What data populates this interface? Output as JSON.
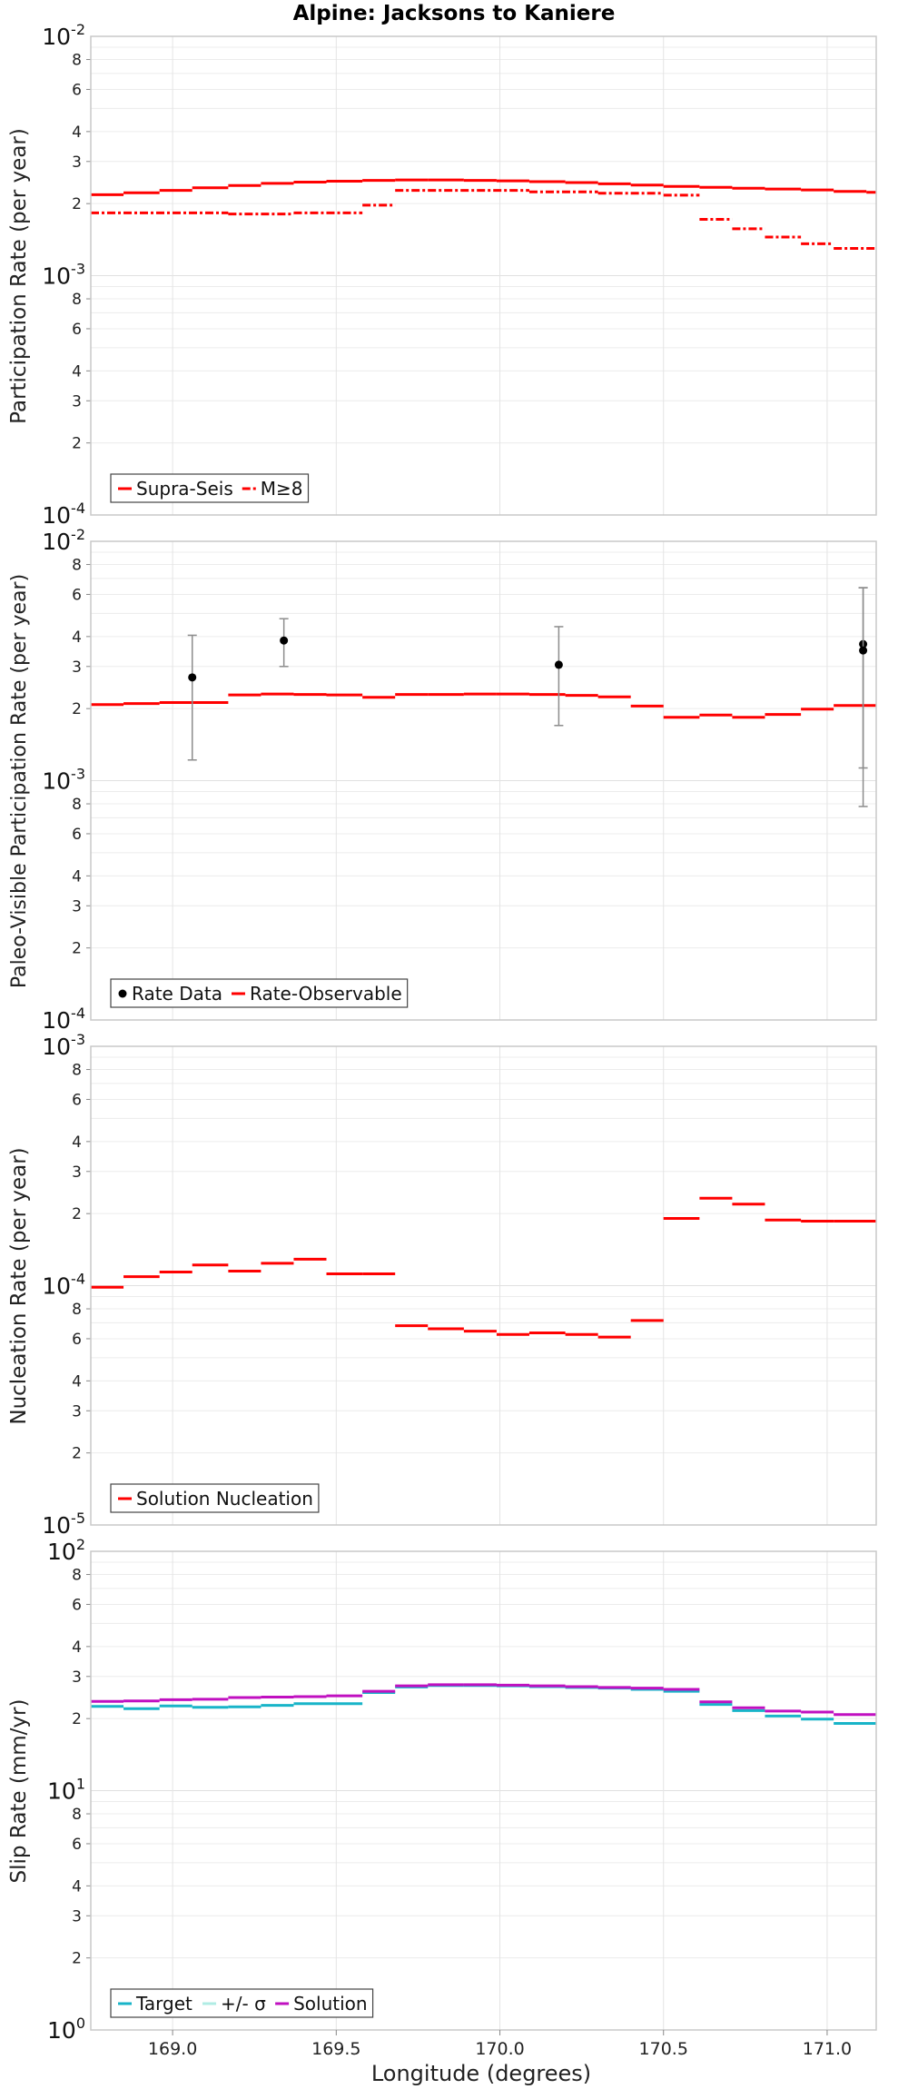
{
  "figure": {
    "title": "Alpine: Jacksons to Kaniere",
    "xlabel": "Longitude (degrees)",
    "xticks": [
      "169.0",
      "169.5",
      "170.0",
      "170.5",
      "171.0"
    ],
    "xtick_values": [
      169.0,
      169.5,
      170.0,
      170.5,
      171.0
    ],
    "xlim": [
      168.75,
      171.15
    ]
  },
  "chart_data": [
    {
      "type": "line",
      "id": "participation",
      "ylabel": "Participation Rate (per year)",
      "yscale": "log",
      "ylim": [
        0.0001,
        0.01
      ],
      "major_ticks": [
        {
          "base": "10",
          "exp": "-4"
        },
        {
          "base": "10",
          "exp": "-3"
        },
        {
          "base": "10",
          "exp": "-2"
        }
      ],
      "minor_labels": [
        "2",
        "3",
        "4",
        "6",
        "8"
      ],
      "legend": [
        "Supra-Seis",
        "M≥8"
      ],
      "series": [
        {
          "name": "Supra-Seis",
          "color": "#ff0000",
          "style": "solid",
          "segments": [
            [
              168.75,
              168.85,
              0.00218
            ],
            [
              168.85,
              168.96,
              0.00222
            ],
            [
              168.96,
              169.06,
              0.00227
            ],
            [
              169.06,
              169.17,
              0.00233
            ],
            [
              169.17,
              169.27,
              0.00238
            ],
            [
              169.27,
              169.37,
              0.00243
            ],
            [
              169.37,
              169.47,
              0.00246
            ],
            [
              169.47,
              169.58,
              0.00248
            ],
            [
              169.58,
              169.68,
              0.0025
            ],
            [
              169.68,
              169.78,
              0.00251
            ],
            [
              169.78,
              169.89,
              0.00251
            ],
            [
              169.89,
              169.99,
              0.0025
            ],
            [
              169.99,
              170.09,
              0.00249
            ],
            [
              170.09,
              170.2,
              0.00247
            ],
            [
              170.2,
              170.3,
              0.00245
            ],
            [
              170.3,
              170.4,
              0.00242
            ],
            [
              170.4,
              170.5,
              0.00239
            ],
            [
              170.5,
              170.61,
              0.00236
            ],
            [
              170.61,
              170.71,
              0.00234
            ],
            [
              170.71,
              170.81,
              0.00232
            ],
            [
              170.81,
              170.92,
              0.0023
            ],
            [
              170.92,
              171.02,
              0.00228
            ],
            [
              171.02,
              171.12,
              0.00225
            ],
            [
              171.12,
              171.15,
              0.00223
            ]
          ]
        },
        {
          "name": "M≥8",
          "color": "#ff0000",
          "style": "dashdot",
          "segments": [
            [
              168.75,
              169.17,
              0.00183
            ],
            [
              169.17,
              169.37,
              0.00181
            ],
            [
              169.37,
              169.47,
              0.00183
            ],
            [
              169.47,
              169.58,
              0.00183
            ],
            [
              169.58,
              169.68,
              0.00197
            ],
            [
              169.68,
              170.09,
              0.00227
            ],
            [
              170.09,
              170.3,
              0.00224
            ],
            [
              170.3,
              170.5,
              0.00221
            ],
            [
              170.5,
              170.61,
              0.00217
            ],
            [
              170.61,
              170.71,
              0.00172
            ],
            [
              170.71,
              170.81,
              0.00157
            ],
            [
              170.81,
              170.92,
              0.00145
            ],
            [
              170.92,
              171.02,
              0.00136
            ],
            [
              171.02,
              171.15,
              0.0013
            ]
          ]
        }
      ]
    },
    {
      "type": "line",
      "id": "paleo",
      "ylabel": "Paleo-Visible Participation Rate (per year)",
      "yscale": "log",
      "ylim": [
        0.0001,
        0.01
      ],
      "major_ticks": [
        {
          "base": "10",
          "exp": "-4"
        },
        {
          "base": "10",
          "exp": "-3"
        },
        {
          "base": "10",
          "exp": "-2"
        }
      ],
      "minor_labels": [
        "2",
        "3",
        "4",
        "6",
        "8"
      ],
      "legend": [
        "Rate Data",
        "Rate-Observable"
      ],
      "series": [
        {
          "name": "Rate-Observable",
          "color": "#ff0000",
          "style": "solid",
          "segments": [
            [
              168.75,
              168.85,
              0.00208
            ],
            [
              168.85,
              168.96,
              0.0021
            ],
            [
              168.96,
              169.06,
              0.00212
            ],
            [
              169.06,
              169.17,
              0.00212
            ],
            [
              169.17,
              169.27,
              0.00228
            ],
            [
              169.27,
              169.37,
              0.0023
            ],
            [
              169.37,
              169.47,
              0.00229
            ],
            [
              169.47,
              169.58,
              0.00228
            ],
            [
              169.58,
              169.68,
              0.00223
            ],
            [
              169.68,
              169.78,
              0.00229
            ],
            [
              169.78,
              169.89,
              0.00229
            ],
            [
              169.89,
              169.99,
              0.0023
            ],
            [
              169.99,
              170.09,
              0.0023
            ],
            [
              170.09,
              170.2,
              0.00229
            ],
            [
              170.2,
              170.3,
              0.00227
            ],
            [
              170.3,
              170.4,
              0.00224
            ],
            [
              170.4,
              170.5,
              0.00205
            ],
            [
              170.5,
              170.61,
              0.00184
            ],
            [
              170.61,
              170.71,
              0.00188
            ],
            [
              170.71,
              170.81,
              0.00184
            ],
            [
              170.81,
              170.92,
              0.00189
            ],
            [
              170.92,
              171.02,
              0.00199
            ],
            [
              171.02,
              171.15,
              0.00206
            ]
          ]
        }
      ],
      "points": [
        {
          "name": "Rate Data",
          "x": 169.06,
          "y": 0.0027,
          "lo": 0.00122,
          "hi": 0.00405
        },
        {
          "name": "Rate Data",
          "x": 169.34,
          "y": 0.00385,
          "lo": 0.003,
          "hi": 0.00475
        },
        {
          "name": "Rate Data",
          "x": 170.18,
          "y": 0.00305,
          "lo": 0.0017,
          "hi": 0.0044
        },
        {
          "name": "Rate Data",
          "x": 171.11,
          "y": 0.00372,
          "lo": 0.00113,
          "hi": 0.0064
        },
        {
          "name": "Rate Data",
          "x": 171.11,
          "y": 0.0035,
          "lo": 0.00078,
          "hi": 0.0064
        }
      ]
    },
    {
      "type": "line",
      "id": "nucleation",
      "ylabel": "Nucleation Rate (per year)",
      "yscale": "log",
      "ylim": [
        1e-05,
        0.001
      ],
      "major_ticks": [
        {
          "base": "10",
          "exp": "-5"
        },
        {
          "base": "10",
          "exp": "-4"
        },
        {
          "base": "10",
          "exp": "-3"
        }
      ],
      "minor_labels": [
        "2",
        "3",
        "4",
        "6",
        "8"
      ],
      "legend": [
        "Solution Nucleation"
      ],
      "series": [
        {
          "name": "Solution Nucleation",
          "color": "#ff0000",
          "style": "solid",
          "segments": [
            [
              168.75,
              168.85,
              9.85e-05
            ],
            [
              168.85,
              168.96,
              0.000109
            ],
            [
              168.96,
              169.06,
              0.000114
            ],
            [
              169.06,
              169.17,
              0.000122
            ],
            [
              169.17,
              169.27,
              0.000115
            ],
            [
              169.27,
              169.37,
              0.000124
            ],
            [
              169.37,
              169.47,
              0.000129
            ],
            [
              169.47,
              169.58,
              0.000112
            ],
            [
              169.58,
              169.68,
              0.000112
            ],
            [
              169.68,
              169.78,
              6.8e-05
            ],
            [
              169.78,
              169.89,
              6.6e-05
            ],
            [
              169.89,
              169.99,
              6.45e-05
            ],
            [
              169.99,
              170.09,
              6.25e-05
            ],
            [
              170.09,
              170.2,
              6.35e-05
            ],
            [
              170.2,
              170.3,
              6.25e-05
            ],
            [
              170.3,
              170.4,
              6.1e-05
            ],
            [
              170.4,
              170.5,
              7.15e-05
            ],
            [
              170.5,
              170.61,
              0.000191
            ],
            [
              170.61,
              170.71,
              0.000232
            ],
            [
              170.71,
              170.81,
              0.000219
            ],
            [
              170.81,
              170.92,
              0.000188
            ],
            [
              170.92,
              171.02,
              0.000186
            ],
            [
              171.02,
              171.15,
              0.000186
            ]
          ]
        }
      ]
    },
    {
      "type": "line",
      "id": "slip",
      "ylabel": "Slip Rate (mm/yr)",
      "yscale": "log",
      "ylim": [
        1,
        100
      ],
      "major_ticks": [
        {
          "base": "10",
          "exp": "0"
        },
        {
          "base": "10",
          "exp": "1"
        },
        {
          "base": "10",
          "exp": "2"
        }
      ],
      "minor_labels": [
        "2",
        "3",
        "4",
        "6",
        "8"
      ],
      "legend": [
        "Target",
        "+/- σ",
        "Solution"
      ],
      "series": [
        {
          "name": "Target",
          "color": "#18b4c8",
          "style": "solid",
          "segments": [
            [
              168.75,
              168.85,
              22.5
            ],
            [
              168.85,
              168.96,
              22.0
            ],
            [
              168.96,
              169.06,
              22.6
            ],
            [
              169.06,
              169.17,
              22.3
            ],
            [
              169.17,
              169.27,
              22.4
            ],
            [
              169.27,
              169.37,
              22.7
            ],
            [
              169.37,
              169.47,
              23.1
            ],
            [
              169.47,
              169.58,
              23.1
            ],
            [
              169.58,
              169.68,
              25.7
            ],
            [
              169.68,
              169.78,
              27.1
            ],
            [
              169.78,
              169.89,
              27.5
            ],
            [
              169.89,
              169.99,
              27.5
            ],
            [
              169.99,
              170.09,
              27.4
            ],
            [
              170.09,
              170.2,
              27.2
            ],
            [
              170.2,
              170.3,
              27.0
            ],
            [
              170.3,
              170.4,
              26.8
            ],
            [
              170.4,
              170.5,
              26.5
            ],
            [
              170.5,
              170.61,
              26.0
            ],
            [
              170.61,
              170.71,
              22.9
            ],
            [
              170.71,
              170.81,
              21.6
            ],
            [
              170.81,
              170.92,
              20.5
            ],
            [
              170.92,
              171.02,
              19.9
            ],
            [
              171.02,
              171.15,
              19.1
            ]
          ]
        },
        {
          "name": "+/- σ",
          "color": "#b0ece4",
          "style": "solid",
          "segments": []
        },
        {
          "name": "Solution",
          "color": "#c010c0",
          "style": "solid",
          "segments": [
            [
              168.75,
              168.85,
              23.6
            ],
            [
              168.85,
              168.96,
              23.7
            ],
            [
              168.96,
              169.06,
              24.0
            ],
            [
              169.06,
              169.17,
              24.1
            ],
            [
              169.17,
              169.27,
              24.5
            ],
            [
              169.27,
              169.37,
              24.6
            ],
            [
              169.37,
              169.47,
              24.7
            ],
            [
              169.47,
              169.58,
              24.9
            ],
            [
              169.58,
              169.68,
              26.0
            ],
            [
              169.68,
              169.78,
              27.4
            ],
            [
              169.78,
              169.89,
              27.7
            ],
            [
              169.89,
              169.99,
              27.7
            ],
            [
              169.99,
              170.09,
              27.6
            ],
            [
              170.09,
              170.2,
              27.4
            ],
            [
              170.2,
              170.3,
              27.2
            ],
            [
              170.3,
              170.4,
              27.0
            ],
            [
              170.4,
              170.5,
              26.8
            ],
            [
              170.5,
              170.61,
              26.5
            ],
            [
              170.61,
              170.71,
              23.5
            ],
            [
              170.71,
              170.81,
              22.2
            ],
            [
              170.81,
              170.92,
              21.5
            ],
            [
              170.92,
              171.02,
              21.3
            ],
            [
              171.02,
              171.15,
              20.8
            ]
          ]
        }
      ]
    }
  ]
}
